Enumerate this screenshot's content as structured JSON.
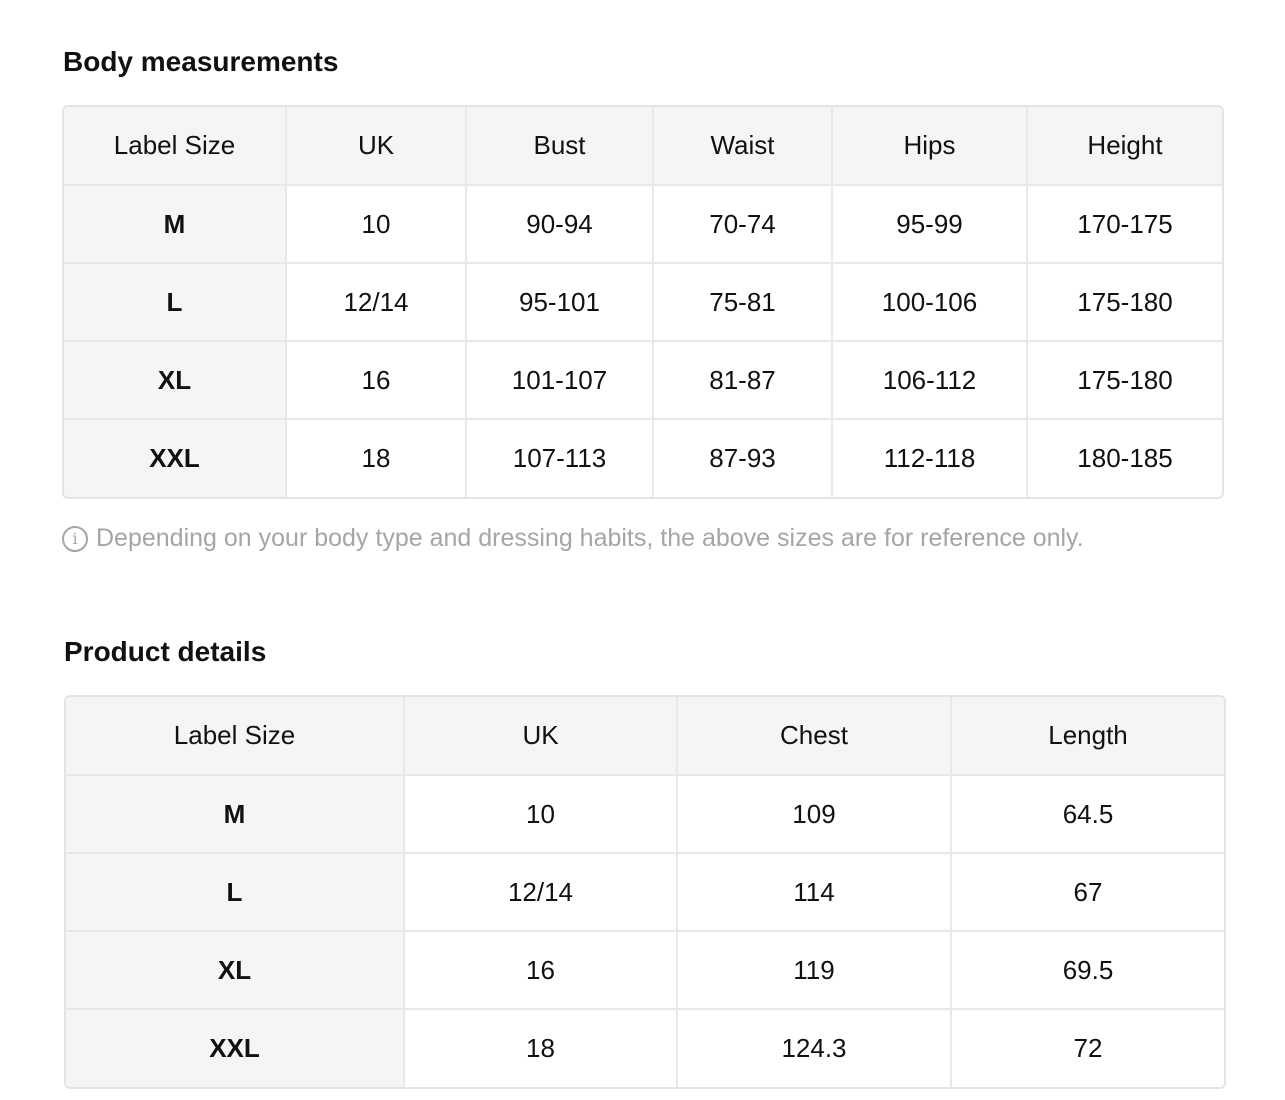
{
  "body": {
    "title": "Body measurements",
    "headers": [
      "Label Size",
      "UK",
      "Bust",
      "Waist",
      "Hips",
      "Height"
    ],
    "rows": [
      [
        "M",
        "10",
        "90-94",
        "70-74",
        "95-99",
        "170-175"
      ],
      [
        "L",
        "12/14",
        "95-101",
        "75-81",
        "100-106",
        "175-180"
      ],
      [
        "XL",
        "16",
        "101-107",
        "81-87",
        "106-112",
        "175-180"
      ],
      [
        "XXL",
        "18",
        "107-113",
        "87-93",
        "112-118",
        "180-185"
      ]
    ],
    "note": "Depending on your body type and dressing habits, the above sizes are for reference only.",
    "note_icon": "info-icon"
  },
  "product": {
    "title": "Product details",
    "headers": [
      "Label Size",
      "UK",
      "Chest",
      "Length"
    ],
    "rows": [
      [
        "M",
        "10",
        "109",
        "64.5"
      ],
      [
        "L",
        "12/14",
        "114",
        "67"
      ],
      [
        "XL",
        "16",
        "119",
        "69.5"
      ],
      [
        "XXL",
        "18",
        "124.3",
        "72"
      ]
    ]
  }
}
